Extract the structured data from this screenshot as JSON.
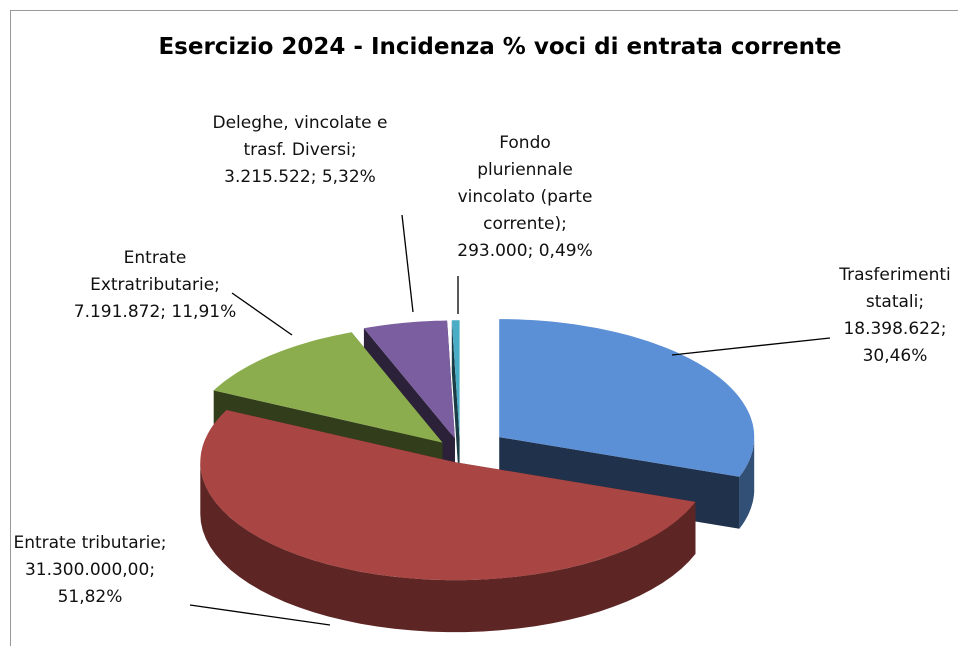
{
  "chart_data": {
    "type": "pie3d",
    "title": "Esercizio 2024 - Incidenza % voci di entrata corrente",
    "categories": [
      "Trasferimenti statali",
      "Entrate tributarie",
      "Entrate Extratributarie",
      "Deleghe, vincolate e trasf. Diversi",
      "Fondo pluriennale vincolato (parte corrente)"
    ],
    "values": [
      18398622,
      31300000,
      7191872,
      3215522,
      293000
    ],
    "value_labels": [
      "18.398.622",
      "31.300.000,00",
      "7.191.872",
      "3.215.522",
      "293.000"
    ],
    "percent_values": [
      30.46,
      51.82,
      11.91,
      5.32,
      0.49
    ],
    "percent_labels": [
      "30,46%",
      "51,82%",
      "11,91%",
      "5,32%",
      "0,49%"
    ],
    "label_separator": "; ",
    "colors": [
      "#5b8fd6",
      "#a94543",
      "#8cad4e",
      "#7b5e9f",
      "#4bacc6"
    ]
  }
}
